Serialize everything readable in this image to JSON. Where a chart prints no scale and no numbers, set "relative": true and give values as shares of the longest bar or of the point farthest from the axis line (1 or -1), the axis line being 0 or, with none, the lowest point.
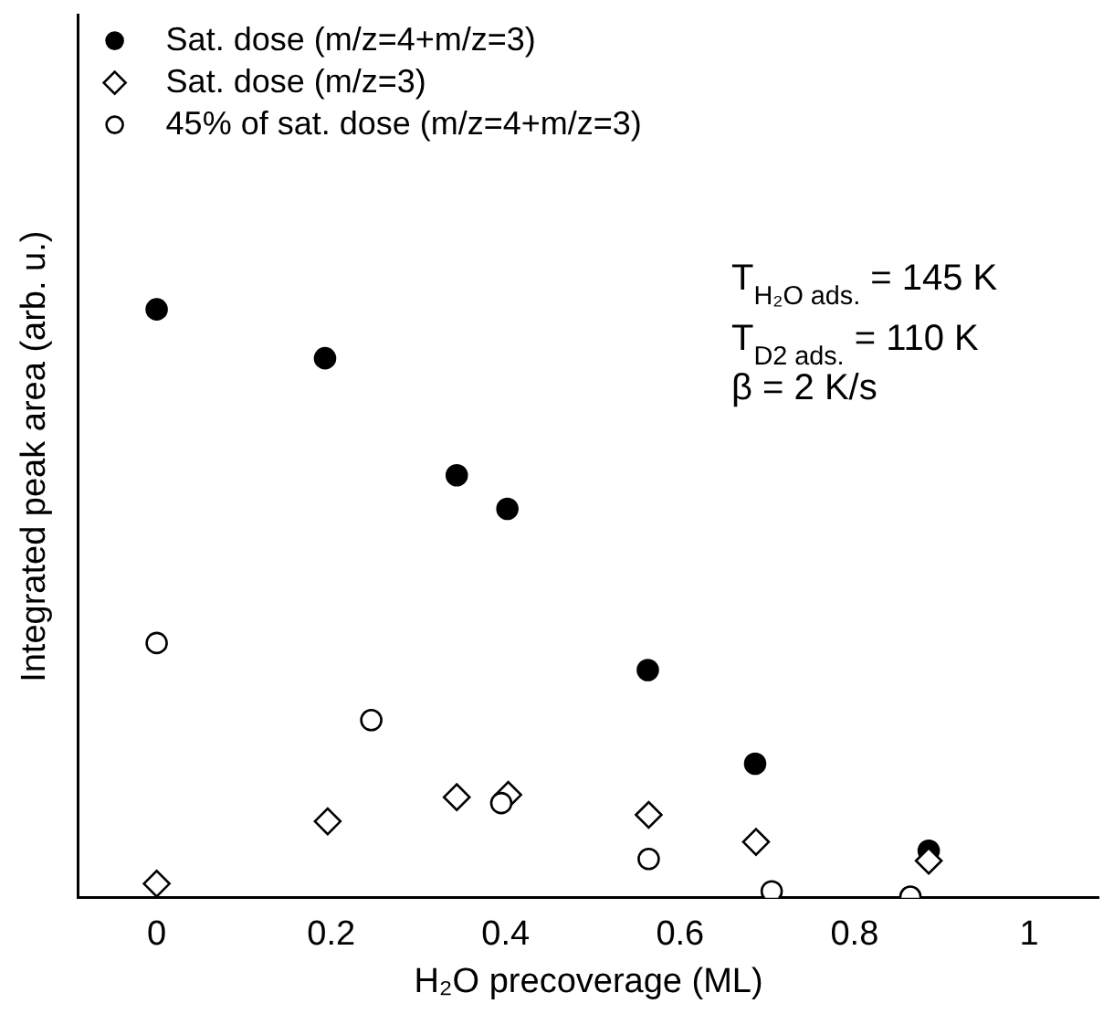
{
  "chart_data": {
    "type": "scatter",
    "relative": true,
    "xlabel": "H₂O precoverage (ML)",
    "ylabel": "Integrated peak area (arb. u.)",
    "xlim": [
      -0.09,
      1.08
    ],
    "xticks": [
      0,
      0.2,
      0.4,
      0.6,
      0.8,
      1
    ],
    "legend": "top left",
    "grid": false,
    "annotations": [
      "T$_{H₂O ads.}$ = 145 K",
      "T$_{D2 ads.}$ = 110 K",
      "β = 2 K/s"
    ],
    "series": [
      {
        "name": "Sat. dose (m/z=4+m/z=3)",
        "color": "#000000",
        "marker": "circle",
        "x": [
          0,
          0.193,
          0.344,
          0.402,
          0.563,
          0.686,
          0.885
        ],
        "values": [
          1,
          0.917,
          0.718,
          0.661,
          0.387,
          0.228,
          0.08
        ]
      },
      {
        "name": "Sat. dose (m/z=3)",
        "color": "#ffffff",
        "marker": "diamond",
        "x": [
          0,
          0.196,
          0.344,
          0.403,
          0.564,
          0.687,
          0.885
        ],
        "values": [
          0.024,
          0.13,
          0.171,
          0.175,
          0.141,
          0.095,
          0.063
        ]
      },
      {
        "name": "45% of sat. dose (m/z=4+m/z=3)",
        "color": "#ffffff",
        "marker": "circle",
        "x": [
          0,
          0.246,
          0.395,
          0.564,
          0.705,
          0.864
        ],
        "values": [
          0.433,
          0.302,
          0.161,
          0.066,
          0.011,
          0.002
        ]
      }
    ]
  }
}
